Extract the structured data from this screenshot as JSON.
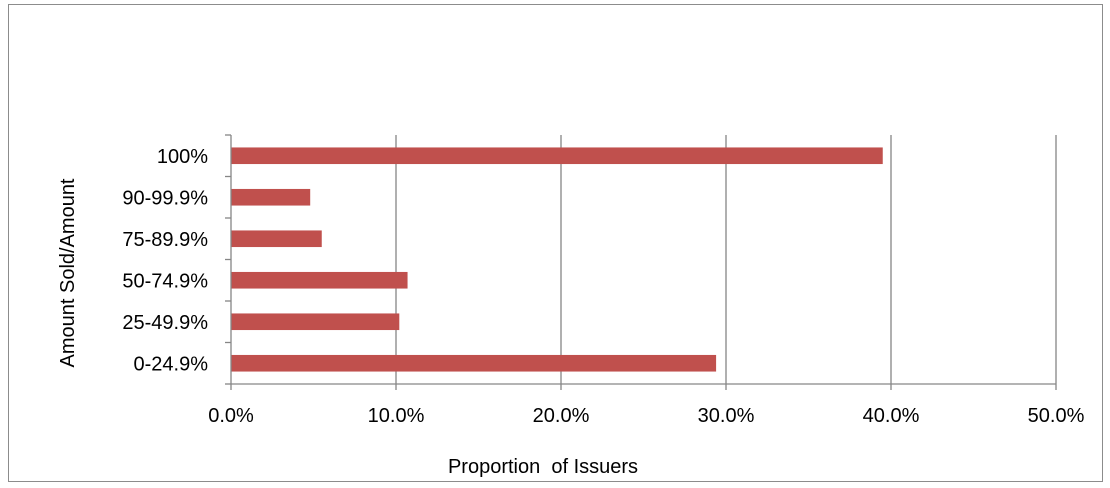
{
  "chart_data": {
    "type": "bar",
    "orientation": "horizontal",
    "title": "",
    "xlabel": "Proportion  of Issuers",
    "ylabel": "Amount Sold/Amount",
    "categories": [
      "0-24.9%",
      "25-49.9%",
      "50-74.9%",
      "75-89.9%",
      "90-99.9%",
      "100%"
    ],
    "values": [
      0.294,
      0.102,
      0.107,
      0.055,
      0.048,
      0.395
    ],
    "xlim": [
      0,
      0.5
    ],
    "x_ticks": [
      0,
      0.1,
      0.2,
      0.3,
      0.4,
      0.5
    ],
    "x_tick_labels": [
      "0.0%",
      "10.0%",
      "20.0%",
      "30.0%",
      "40.0%",
      "50.0%"
    ],
    "grid": "vertical",
    "legend": "none",
    "bar_color": "#c0504d",
    "grid_color": "#868686"
  }
}
